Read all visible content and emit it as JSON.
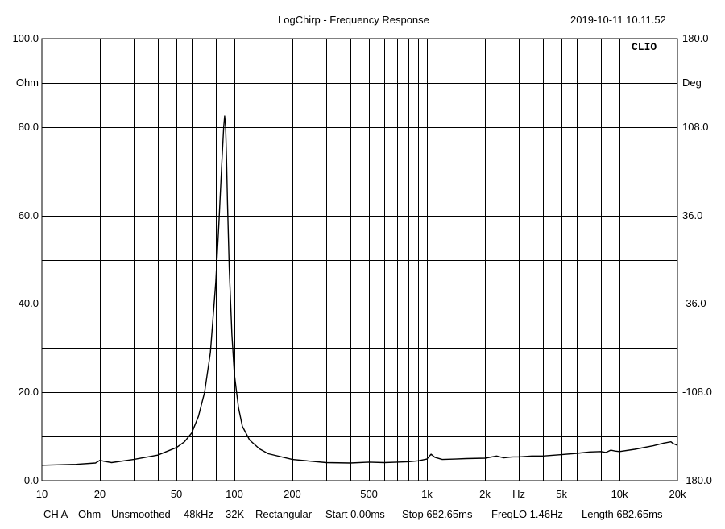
{
  "header": {
    "title": "LogChirp - Frequency Response",
    "timestamp": "2019-10-11 10.11.52",
    "brand": "CLIO"
  },
  "status_bar": {
    "items": [
      "CH A",
      "Ohm",
      "Unsmoothed",
      "48kHz",
      "32K",
      "Rectangular",
      "Start 0.00ms",
      "Stop 682.65ms",
      "FreqLO 1.46Hz",
      "Length 682.65ms"
    ]
  },
  "chart_data": {
    "type": "line",
    "title": "LogChirp - Frequency Response",
    "x_scale": "log",
    "xlim": [
      10,
      20000
    ],
    "xlabel": "Hz",
    "x_tick_labels": [
      {
        "value": 10,
        "label": "10"
      },
      {
        "value": 20,
        "label": "20"
      },
      {
        "value": 50,
        "label": "50"
      },
      {
        "value": 100,
        "label": "100"
      },
      {
        "value": 200,
        "label": "200"
      },
      {
        "value": 500,
        "label": "500"
      },
      {
        "value": 1000,
        "label": "1k"
      },
      {
        "value": 2000,
        "label": "2k"
      },
      {
        "value": 5000,
        "label": "5k"
      },
      {
        "value": 10000,
        "label": "10k"
      },
      {
        "value": 20000,
        "label": "20k"
      }
    ],
    "x_unit_label": {
      "value": 3000,
      "label": "Hz"
    },
    "y_left": {
      "unit": "Ohm",
      "ylim": [
        0,
        100
      ],
      "ticks": [
        {
          "value": 0,
          "label": "0.0"
        },
        {
          "value": 20,
          "label": "20.0"
        },
        {
          "value": 40,
          "label": "40.0"
        },
        {
          "value": 60,
          "label": "60.0"
        },
        {
          "value": 80,
          "label": "80.0"
        },
        {
          "value": 100,
          "label": "100.0"
        }
      ],
      "unit_position": 90
    },
    "y_right": {
      "unit": "Deg",
      "ylim": [
        -180,
        180
      ],
      "ticks": [
        {
          "value": -180,
          "label": "-180.0"
        },
        {
          "value": -108,
          "label": "-108.0"
        },
        {
          "value": -36,
          "label": "-36.0"
        },
        {
          "value": 36,
          "label": "36.0"
        },
        {
          "value": 108,
          "label": "108.0"
        },
        {
          "value": 180,
          "label": "180.0"
        }
      ],
      "unit_position": 144
    },
    "grid": true,
    "series": [
      {
        "unit": "Ohm",
        "color": "#000000",
        "x": [
          10,
          15,
          19,
          20,
          21,
          23,
          30,
          40,
          50,
          55,
          60,
          65,
          70,
          75,
          80,
          83,
          86,
          88,
          89,
          90,
          91,
          92,
          94,
          97,
          100,
          105,
          110,
          120,
          135,
          150,
          200,
          300,
          400,
          500,
          600,
          700,
          800,
          900,
          1000,
          1050,
          1100,
          1200,
          1400,
          1600,
          2000,
          2300,
          2500,
          2800,
          3000,
          3500,
          4000,
          5000,
          6000,
          7000,
          8000,
          8500,
          9000,
          9500,
          10000,
          12000,
          15000,
          17000,
          18500,
          19000,
          20000
        ],
        "y": [
          3.5,
          3.7,
          4.0,
          4.6,
          4.4,
          4.1,
          4.8,
          5.8,
          7.5,
          8.8,
          10.8,
          14.5,
          20,
          29,
          45,
          58,
          72,
          80,
          82.5,
          80,
          73,
          63,
          48,
          33,
          24,
          16.5,
          12.3,
          9.2,
          7.2,
          6.1,
          4.8,
          4.1,
          4.0,
          4.2,
          4.1,
          4.2,
          4.3,
          4.5,
          4.9,
          6.0,
          5.3,
          4.8,
          4.9,
          5.0,
          5.1,
          5.6,
          5.2,
          5.4,
          5.4,
          5.6,
          5.6,
          5.9,
          6.2,
          6.5,
          6.6,
          6.4,
          6.9,
          6.7,
          6.6,
          7.1,
          7.9,
          8.5,
          8.8,
          8.4,
          8.0
        ]
      }
    ]
  }
}
